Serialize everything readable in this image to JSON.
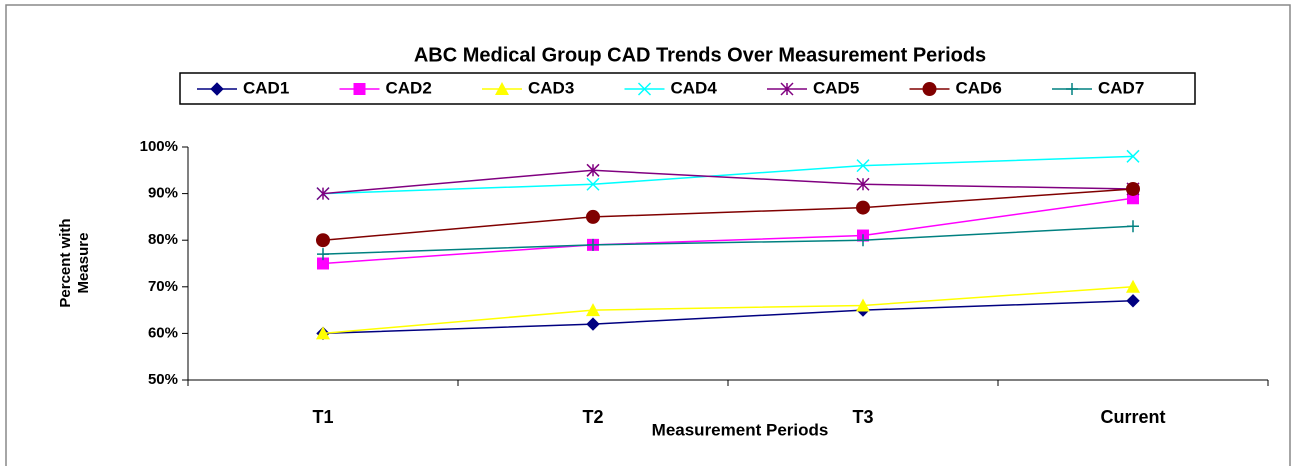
{
  "chart_data": {
    "type": "line",
    "title": "ABC Medical Group CAD Trends Over Measurement Periods",
    "x_label": "Measurement Periods",
    "y_label": "Percent with Measure",
    "categories": [
      "T1",
      "T2",
      "T3",
      "Current"
    ],
    "series": [
      {
        "name": "CAD1",
        "color": "#000080",
        "marker": "diamond",
        "values": [
          60,
          62,
          65,
          67
        ]
      },
      {
        "name": "CAD2",
        "color": "#ff00ff",
        "marker": "square",
        "values": [
          75,
          79,
          81,
          89
        ]
      },
      {
        "name": "CAD3",
        "color": "#ffff00",
        "marker": "triangle",
        "values": [
          60,
          65,
          66,
          70
        ]
      },
      {
        "name": "CAD4",
        "color": "#00ffff",
        "marker": "x",
        "values": [
          90,
          92,
          96,
          98
        ]
      },
      {
        "name": "CAD5",
        "color": "#800080",
        "marker": "star",
        "values": [
          90,
          95,
          92,
          91
        ]
      },
      {
        "name": "CAD6",
        "color": "#800000",
        "marker": "circle",
        "values": [
          80,
          85,
          87,
          91
        ]
      },
      {
        "name": "CAD7",
        "color": "#008080",
        "marker": "plus",
        "values": [
          77,
          79,
          80,
          83
        ]
      }
    ],
    "ylim": [
      50,
      100
    ],
    "yticks": [
      {
        "value": 50,
        "label": "50%"
      },
      {
        "value": 60,
        "label": "60%"
      },
      {
        "value": 70,
        "label": "70%"
      },
      {
        "value": 80,
        "label": "80%"
      },
      {
        "value": 90,
        "label": "90%"
      },
      {
        "value": 100,
        "label": "100%"
      }
    ],
    "grid": false,
    "legend": "top"
  }
}
